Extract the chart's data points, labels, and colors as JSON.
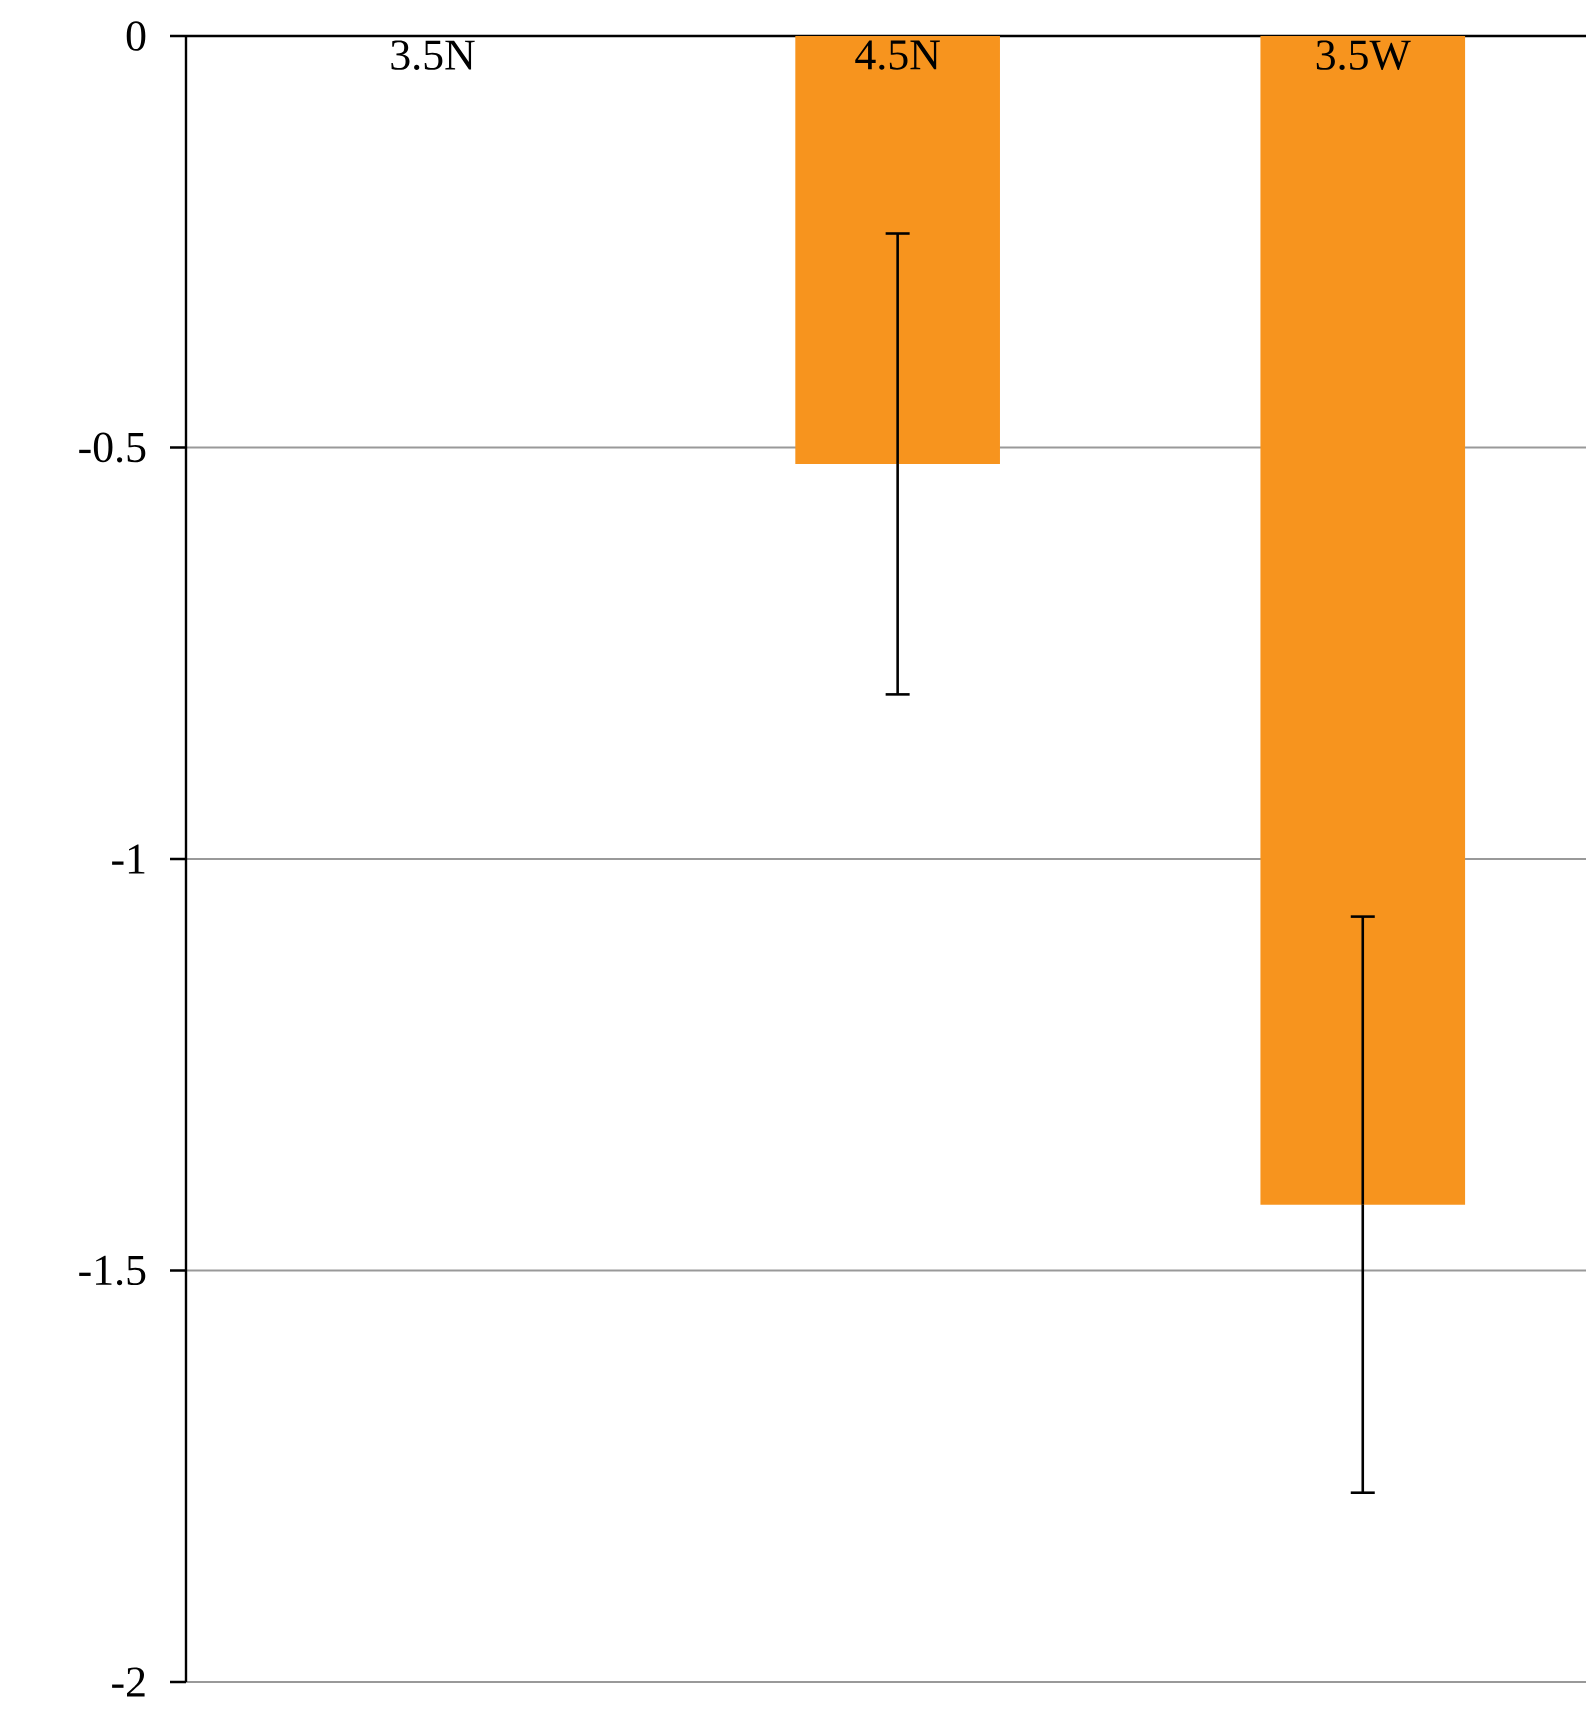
{
  "chart_data": {
    "type": "bar",
    "categories": [
      "3.5N",
      "4.5N",
      "3.5W"
    ],
    "values": [
      0,
      -0.52,
      -1.42
    ],
    "errors": [
      null,
      0.28,
      0.35
    ],
    "color": "#f7941e",
    "ylim": [
      -2,
      0
    ],
    "yticks": [
      -2,
      -1.5,
      -1,
      -0.5,
      0
    ],
    "grid": "y"
  }
}
